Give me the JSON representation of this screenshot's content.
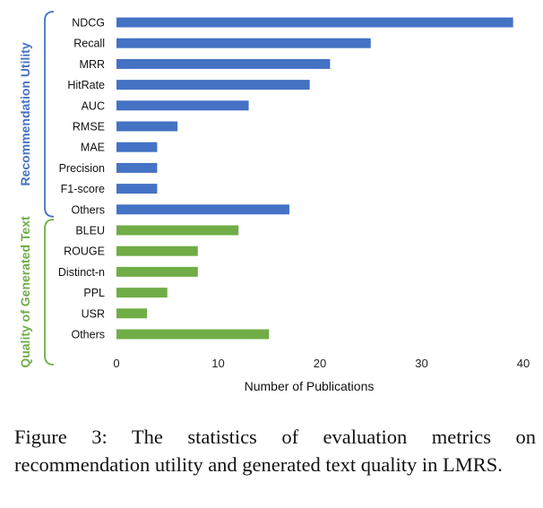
{
  "chart_data": {
    "type": "bar",
    "orientation": "horizontal",
    "xlabel": "Number of Publications",
    "xlim": [
      0,
      40
    ],
    "xticks": [
      0,
      10,
      20,
      30,
      40
    ],
    "grid": false,
    "groups": [
      {
        "name": "Recommendation Utility",
        "color": "#4472C4",
        "categories": [
          "NDCG",
          "Recall",
          "MRR",
          "HitRate",
          "AUC",
          "RMSE",
          "MAE",
          "Precision",
          "F1-score",
          "Others"
        ],
        "values": [
          39,
          25,
          21,
          19,
          13,
          6,
          4,
          4,
          4,
          17
        ]
      },
      {
        "name": "Quality of Generated Text",
        "color": "#70AD47",
        "categories": [
          "BLEU",
          "ROUGE",
          "Distinct-n",
          "PPL",
          "USR",
          "Others"
        ],
        "values": [
          12,
          8,
          8,
          5,
          3,
          15
        ]
      }
    ]
  },
  "caption": "Figure 3: The statistics of evaluation metrics on recommendation utility and generated text quality in LMRS."
}
